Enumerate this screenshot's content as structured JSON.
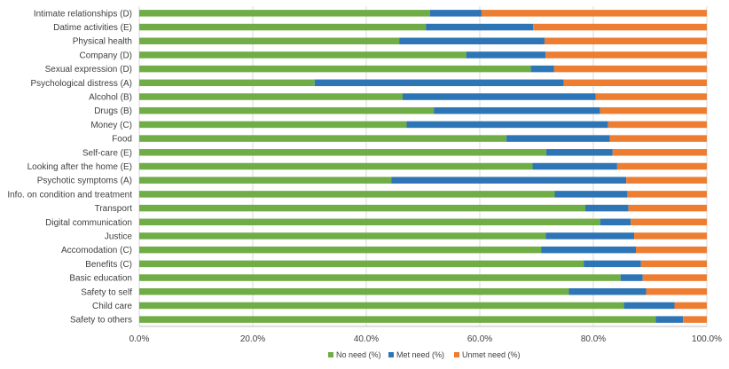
{
  "chart_data": {
    "type": "bar",
    "orientation": "horizontal",
    "stacked": true,
    "title": "",
    "xlabel": "",
    "ylabel": "",
    "xlim": [
      0,
      100
    ],
    "grid": true,
    "legend_position": "bottom",
    "x_ticks": [
      "0.0%",
      "20.0%",
      "40.0%",
      "60.0%",
      "80.0%",
      "100.0%"
    ],
    "categories": [
      "Intimate relationships (D)",
      "Datime activities (E)",
      "Physical health",
      "Company (D)",
      "Sexual expression (D)",
      "Psychological distress (A)",
      "Alcohol (B)",
      "Drugs (B)",
      "Money (C)",
      "Food",
      "Self-care (E)",
      "Looking after the home (E)",
      "Psychotic symptoms (A)",
      "Info. on condition and treatment",
      "Transport",
      "Digital communication",
      "Justice",
      "Accomodation (C)",
      "Benefits (C)",
      "Basic education",
      "Safety to self",
      "Child care",
      "Safety to others"
    ],
    "series": [
      {
        "name": "No need (%)",
        "color": "#70ad47",
        "values": [
          51.2,
          50.5,
          45.8,
          57.6,
          69.0,
          30.9,
          46.4,
          51.9,
          47.1,
          64.7,
          71.7,
          69.3,
          44.4,
          73.2,
          78.6,
          81.2,
          71.6,
          70.8,
          78.3,
          84.8,
          75.7,
          85.4,
          91.0
        ]
      },
      {
        "name": "Met need (%)",
        "color": "#2e75b6",
        "values": [
          9.1,
          18.9,
          25.6,
          14.0,
          4.1,
          43.9,
          34.0,
          29.3,
          35.5,
          18.2,
          11.7,
          14.9,
          41.4,
          12.8,
          7.6,
          5.4,
          15.6,
          16.7,
          10.1,
          3.9,
          13.6,
          8.9,
          4.8
        ]
      },
      {
        "name": "Unmet need (%)",
        "color": "#ed7d31",
        "values": [
          39.7,
          30.6,
          28.6,
          28.4,
          26.9,
          25.2,
          19.6,
          18.8,
          17.4,
          17.1,
          16.6,
          15.8,
          14.2,
          14.0,
          13.8,
          13.4,
          12.8,
          12.5,
          11.6,
          11.3,
          10.7,
          5.7,
          4.2
        ]
      }
    ]
  }
}
